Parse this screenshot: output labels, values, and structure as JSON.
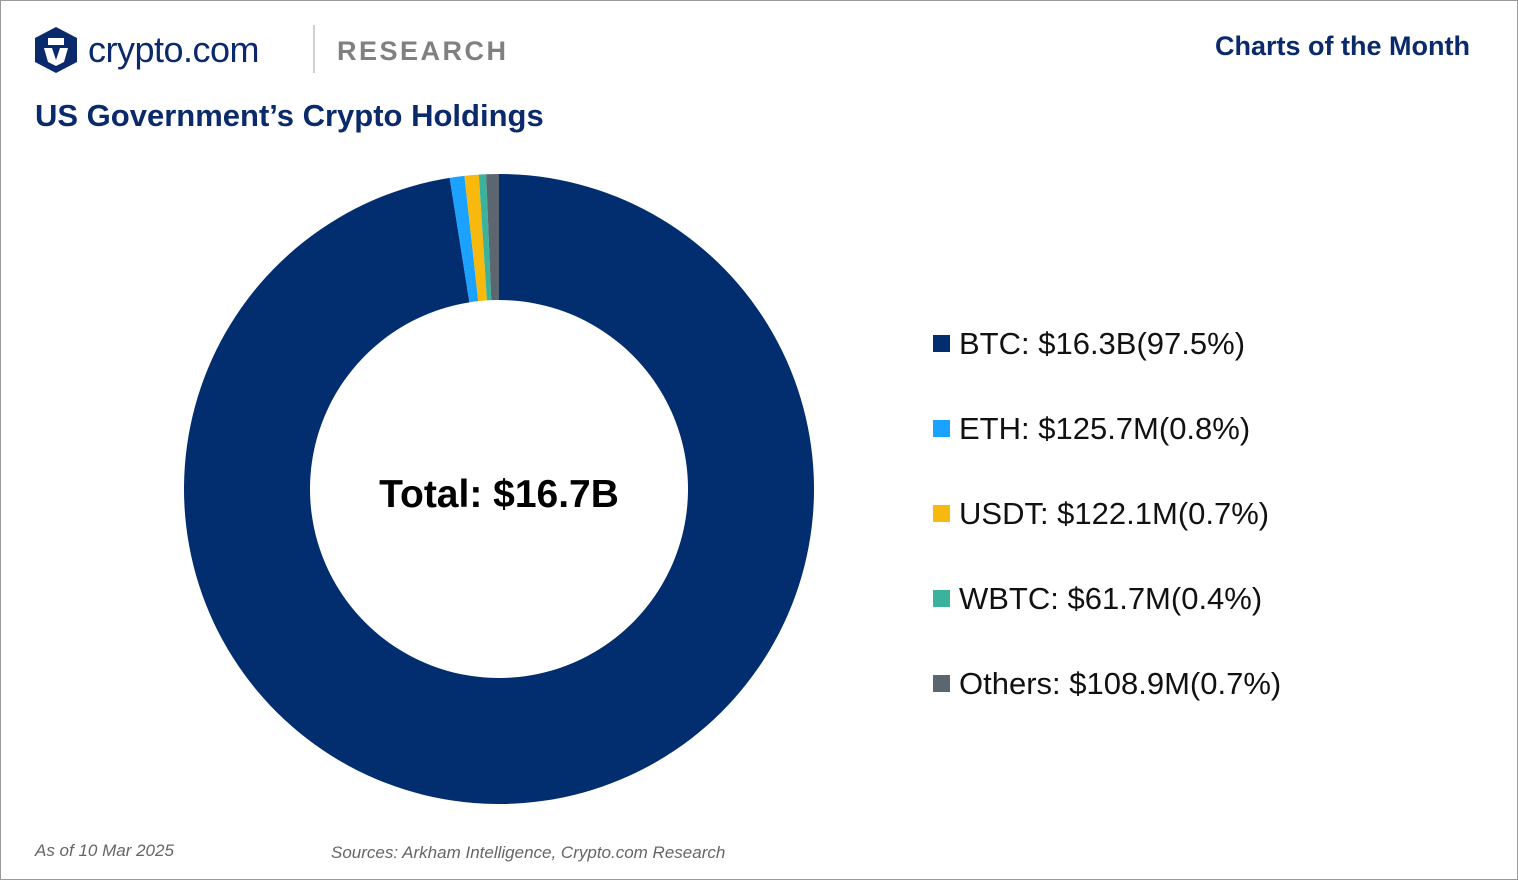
{
  "header": {
    "brand": "crypto.com",
    "section": "RESEARCH",
    "series_title": "Charts of the Month"
  },
  "chart_data": {
    "type": "pie",
    "variant": "donut",
    "title": "US Government’s Crypto Holdings",
    "center_label": "Total: $16.7B",
    "categories": [
      "BTC",
      "ETH",
      "USDT",
      "WBTC",
      "Others"
    ],
    "values_usd_millions": [
      16300,
      125.7,
      122.1,
      61.7,
      108.9
    ],
    "percentages": [
      97.5,
      0.8,
      0.7,
      0.4,
      0.7
    ],
    "colors": [
      "#022d6e",
      "#1ba1ff",
      "#f8b90f",
      "#3bb39c",
      "#5b6670"
    ],
    "legend_labels": [
      "BTC: $16.3B(97.5%)",
      "ETH: $125.7M(0.8%)",
      "USDT: $122.1M(0.7%)",
      "WBTC: $61.7M(0.4%)",
      "Others: $108.9M(0.7%)"
    ],
    "legend_position": "right"
  },
  "footer": {
    "as_of": "As of 10 Mar 2025",
    "sources": "Sources: Arkham Intelligence, Crypto.com Research"
  }
}
